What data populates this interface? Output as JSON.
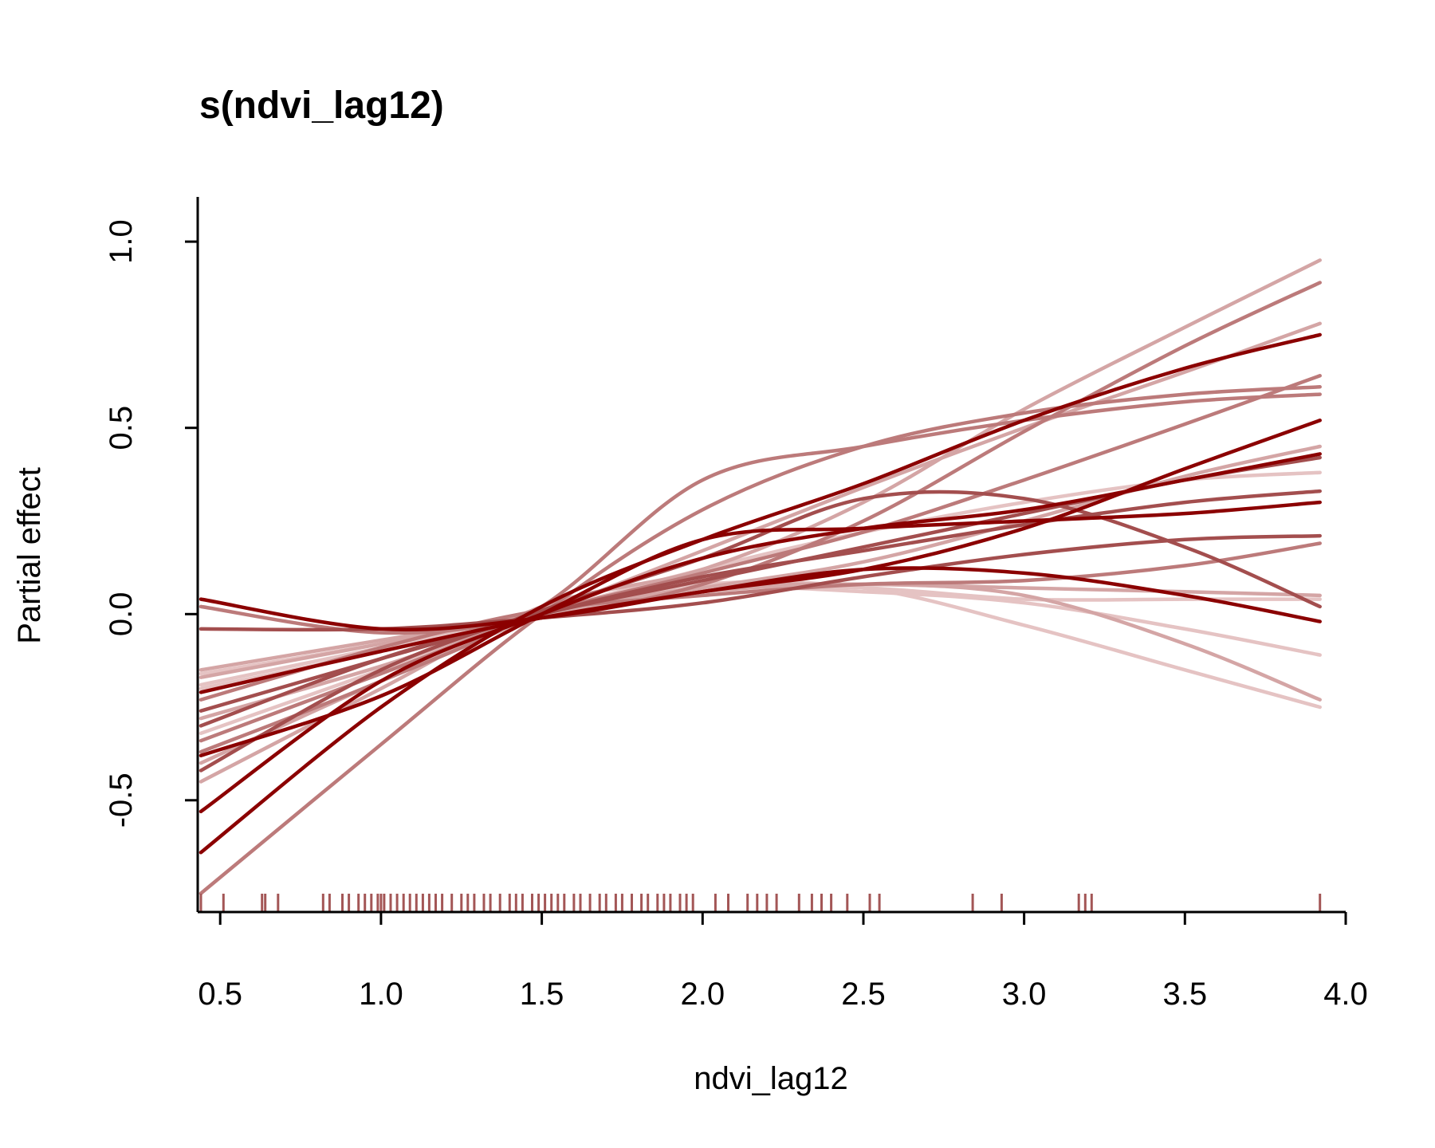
{
  "chart_data": {
    "type": "line",
    "title": "s(ndvi_lag12)",
    "xlabel": "ndvi_lag12",
    "ylabel": "Partial effect",
    "xlim": [
      0.43,
      4.0
    ],
    "ylim": [
      -0.8,
      1.12
    ],
    "x_ticks": [
      0.5,
      1.0,
      1.5,
      2.0,
      2.5,
      3.0,
      3.5,
      4.0
    ],
    "x_tick_labels": [
      "0.5",
      "1.0",
      "1.5",
      "2.0",
      "2.5",
      "3.0",
      "3.5",
      "4.0"
    ],
    "y_ticks": [
      -0.5,
      0.0,
      0.5,
      1.0
    ],
    "y_tick_labels": [
      "-0.5",
      "0.0",
      "0.5",
      "1.0"
    ],
    "grid": false,
    "legend": "none",
    "colors": {
      "dark": "#8b0000",
      "mid_dark": "#a34e4e",
      "mid": "#bc7a7a",
      "light": "#d4a5a5",
      "lightest": "#e5c3c3",
      "rug": "#a35656",
      "axis": "#000000"
    },
    "series": [
      {
        "color": "#8b0000",
        "values": [
          [
            0.44,
            0.04
          ],
          [
            1.0,
            -0.04
          ],
          [
            1.5,
            -0.01
          ],
          [
            2.0,
            0.06
          ],
          [
            2.5,
            0.12
          ],
          [
            3.0,
            0.11
          ],
          [
            3.5,
            0.05
          ],
          [
            3.92,
            -0.02
          ]
        ]
      },
      {
        "color": "#8b0000",
        "values": [
          [
            0.44,
            -0.64
          ],
          [
            1.0,
            -0.25
          ],
          [
            1.5,
            0.02
          ],
          [
            2.0,
            0.2
          ],
          [
            2.5,
            0.35
          ],
          [
            3.0,
            0.52
          ],
          [
            3.5,
            0.66
          ],
          [
            3.92,
            0.75
          ]
        ]
      },
      {
        "color": "#8b0000",
        "values": [
          [
            0.44,
            -0.53
          ],
          [
            1.0,
            -0.18
          ],
          [
            1.5,
            0.0
          ],
          [
            2.0,
            0.15
          ],
          [
            2.5,
            0.23
          ],
          [
            3.0,
            0.28
          ],
          [
            3.5,
            0.36
          ],
          [
            3.92,
            0.43
          ]
        ]
      },
      {
        "color": "#8b0000",
        "values": [
          [
            0.44,
            -0.21
          ],
          [
            1.0,
            -0.1
          ],
          [
            1.5,
            -0.01
          ],
          [
            2.0,
            0.06
          ],
          [
            2.5,
            0.12
          ],
          [
            3.0,
            0.23
          ],
          [
            3.5,
            0.39
          ],
          [
            3.92,
            0.52
          ]
        ]
      },
      {
        "color": "#8b0000",
        "values": [
          [
            0.44,
            -0.38
          ],
          [
            1.0,
            -0.22
          ],
          [
            1.5,
            0.0
          ],
          [
            2.0,
            0.2
          ],
          [
            2.5,
            0.23
          ],
          [
            3.0,
            0.25
          ],
          [
            3.5,
            0.27
          ],
          [
            3.92,
            0.3
          ]
        ]
      },
      {
        "color": "#a34e4e",
        "values": [
          [
            0.44,
            -0.04
          ],
          [
            1.0,
            -0.04
          ],
          [
            1.5,
            -0.01
          ],
          [
            2.0,
            0.03
          ],
          [
            2.5,
            0.1
          ],
          [
            3.0,
            0.16
          ],
          [
            3.5,
            0.2
          ],
          [
            3.92,
            0.21
          ]
        ]
      },
      {
        "color": "#a34e4e",
        "values": [
          [
            0.44,
            -0.42
          ],
          [
            1.0,
            -0.15
          ],
          [
            1.5,
            0.01
          ],
          [
            2.0,
            0.15
          ],
          [
            2.5,
            0.31
          ],
          [
            3.0,
            0.31
          ],
          [
            3.5,
            0.18
          ],
          [
            3.92,
            0.02
          ]
        ]
      },
      {
        "color": "#a34e4e",
        "values": [
          [
            0.44,
            -0.3
          ],
          [
            1.0,
            -0.12
          ],
          [
            1.5,
            0.0
          ],
          [
            2.0,
            0.09
          ],
          [
            2.5,
            0.18
          ],
          [
            3.0,
            0.27
          ],
          [
            3.5,
            0.36
          ],
          [
            3.92,
            0.42
          ]
        ]
      },
      {
        "color": "#a34e4e",
        "values": [
          [
            0.44,
            -0.26
          ],
          [
            1.0,
            -0.12
          ],
          [
            1.5,
            0.0
          ],
          [
            2.0,
            0.1
          ],
          [
            2.5,
            0.17
          ],
          [
            3.0,
            0.24
          ],
          [
            3.5,
            0.3
          ],
          [
            3.92,
            0.33
          ]
        ]
      },
      {
        "color": "#bc7a7a",
        "values": [
          [
            0.44,
            -0.75
          ],
          [
            1.0,
            -0.35
          ],
          [
            1.5,
            0.0
          ],
          [
            2.0,
            0.28
          ],
          [
            2.5,
            0.45
          ],
          [
            3.0,
            0.54
          ],
          [
            3.5,
            0.59
          ],
          [
            3.92,
            0.61
          ]
        ]
      },
      {
        "color": "#bc7a7a",
        "values": [
          [
            0.44,
            0.02
          ],
          [
            1.0,
            -0.05
          ],
          [
            1.5,
            -0.01
          ],
          [
            2.0,
            0.08
          ],
          [
            2.5,
            0.25
          ],
          [
            3.0,
            0.49
          ],
          [
            3.5,
            0.72
          ],
          [
            3.92,
            0.89
          ]
        ]
      },
      {
        "color": "#bc7a7a",
        "values": [
          [
            0.44,
            -0.37
          ],
          [
            1.0,
            -0.18
          ],
          [
            1.5,
            0.02
          ],
          [
            2.0,
            0.36
          ],
          [
            2.5,
            0.45
          ],
          [
            3.0,
            0.52
          ],
          [
            3.5,
            0.57
          ],
          [
            3.92,
            0.59
          ]
        ]
      },
      {
        "color": "#bc7a7a",
        "values": [
          [
            0.44,
            -0.34
          ],
          [
            1.0,
            -0.16
          ],
          [
            1.5,
            0.0
          ],
          [
            2.0,
            0.11
          ],
          [
            2.5,
            0.22
          ],
          [
            3.0,
            0.36
          ],
          [
            3.5,
            0.51
          ],
          [
            3.92,
            0.64
          ]
        ]
      },
      {
        "color": "#bc7a7a",
        "values": [
          [
            0.44,
            -0.23
          ],
          [
            1.0,
            -0.09
          ],
          [
            1.5,
            0.01
          ],
          [
            2.0,
            0.05
          ],
          [
            2.5,
            0.08
          ],
          [
            3.0,
            0.09
          ],
          [
            3.5,
            0.13
          ],
          [
            3.92,
            0.19
          ]
        ]
      },
      {
        "color": "#d4a5a5",
        "values": [
          [
            0.44,
            -0.15
          ],
          [
            1.0,
            -0.07
          ],
          [
            1.5,
            0.0
          ],
          [
            2.0,
            0.06
          ],
          [
            2.5,
            0.08
          ],
          [
            3.0,
            0.05
          ],
          [
            3.5,
            -0.08
          ],
          [
            3.92,
            -0.23
          ]
        ]
      },
      {
        "color": "#d4a5a5",
        "values": [
          [
            0.44,
            -0.4
          ],
          [
            1.0,
            -0.18
          ],
          [
            1.5,
            0.0
          ],
          [
            2.0,
            0.17
          ],
          [
            2.5,
            0.34
          ],
          [
            3.0,
            0.5
          ],
          [
            3.5,
            0.65
          ],
          [
            3.92,
            0.78
          ]
        ]
      },
      {
        "color": "#d4a5a5",
        "values": [
          [
            0.44,
            -0.45
          ],
          [
            1.0,
            -0.2
          ],
          [
            1.5,
            0.02
          ],
          [
            2.0,
            0.12
          ],
          [
            2.5,
            0.3
          ],
          [
            3.0,
            0.55
          ],
          [
            3.5,
            0.77
          ],
          [
            3.92,
            0.95
          ]
        ]
      },
      {
        "color": "#d4a5a5",
        "values": [
          [
            0.44,
            -0.17
          ],
          [
            1.0,
            -0.08
          ],
          [
            1.5,
            0.0
          ],
          [
            2.0,
            0.07
          ],
          [
            2.5,
            0.08
          ],
          [
            3.0,
            0.07
          ],
          [
            3.5,
            0.06
          ],
          [
            3.92,
            0.05
          ]
        ]
      },
      {
        "color": "#d4a5a5",
        "values": [
          [
            0.44,
            -0.28
          ],
          [
            1.0,
            -0.14
          ],
          [
            1.5,
            0.0
          ],
          [
            2.0,
            0.07
          ],
          [
            2.5,
            0.14
          ],
          [
            3.0,
            0.25
          ],
          [
            3.5,
            0.37
          ],
          [
            3.92,
            0.45
          ]
        ]
      },
      {
        "color": "#e5c3c3",
        "values": [
          [
            0.44,
            -0.19
          ],
          [
            1.0,
            -0.09
          ],
          [
            1.5,
            0.0
          ],
          [
            2.0,
            0.08
          ],
          [
            2.5,
            0.07
          ],
          [
            3.0,
            -0.03
          ],
          [
            3.5,
            -0.15
          ],
          [
            3.92,
            -0.25
          ]
        ]
      },
      {
        "color": "#e5c3c3",
        "values": [
          [
            0.44,
            -0.2
          ],
          [
            1.0,
            -0.1
          ],
          [
            1.5,
            0.0
          ],
          [
            2.0,
            0.07
          ],
          [
            2.5,
            0.06
          ],
          [
            3.0,
            0.03
          ],
          [
            3.5,
            -0.04
          ],
          [
            3.92,
            -0.11
          ]
        ]
      },
      {
        "color": "#e5c3c3",
        "values": [
          [
            0.44,
            -0.32
          ],
          [
            1.0,
            -0.15
          ],
          [
            1.5,
            0.0
          ],
          [
            2.0,
            0.12
          ],
          [
            2.5,
            0.22
          ],
          [
            3.0,
            0.3
          ],
          [
            3.5,
            0.36
          ],
          [
            3.92,
            0.38
          ]
        ]
      },
      {
        "color": "#e5c3c3",
        "values": [
          [
            0.44,
            -0.16
          ],
          [
            1.0,
            -0.08
          ],
          [
            1.5,
            0.0
          ],
          [
            2.0,
            0.07
          ],
          [
            2.5,
            0.07
          ],
          [
            3.0,
            0.04
          ],
          [
            3.5,
            0.04
          ],
          [
            3.92,
            0.04
          ]
        ]
      }
    ],
    "rug_x": [
      0.44,
      0.51,
      0.63,
      0.64,
      0.68,
      0.82,
      0.84,
      0.88,
      0.9,
      0.93,
      0.95,
      0.97,
      0.99,
      1.0,
      1.01,
      1.03,
      1.05,
      1.07,
      1.09,
      1.11,
      1.13,
      1.15,
      1.17,
      1.19,
      1.22,
      1.25,
      1.27,
      1.29,
      1.32,
      1.34,
      1.37,
      1.4,
      1.42,
      1.44,
      1.47,
      1.49,
      1.51,
      1.53,
      1.55,
      1.57,
      1.6,
      1.62,
      1.65,
      1.68,
      1.7,
      1.73,
      1.75,
      1.78,
      1.81,
      1.83,
      1.86,
      1.88,
      1.9,
      1.93,
      1.95,
      1.97,
      2.04,
      2.08,
      2.14,
      2.17,
      2.2,
      2.23,
      2.3,
      2.34,
      2.37,
      2.4,
      2.45,
      2.52,
      2.55,
      2.84,
      2.93,
      3.17,
      3.19,
      3.21,
      3.92
    ]
  }
}
